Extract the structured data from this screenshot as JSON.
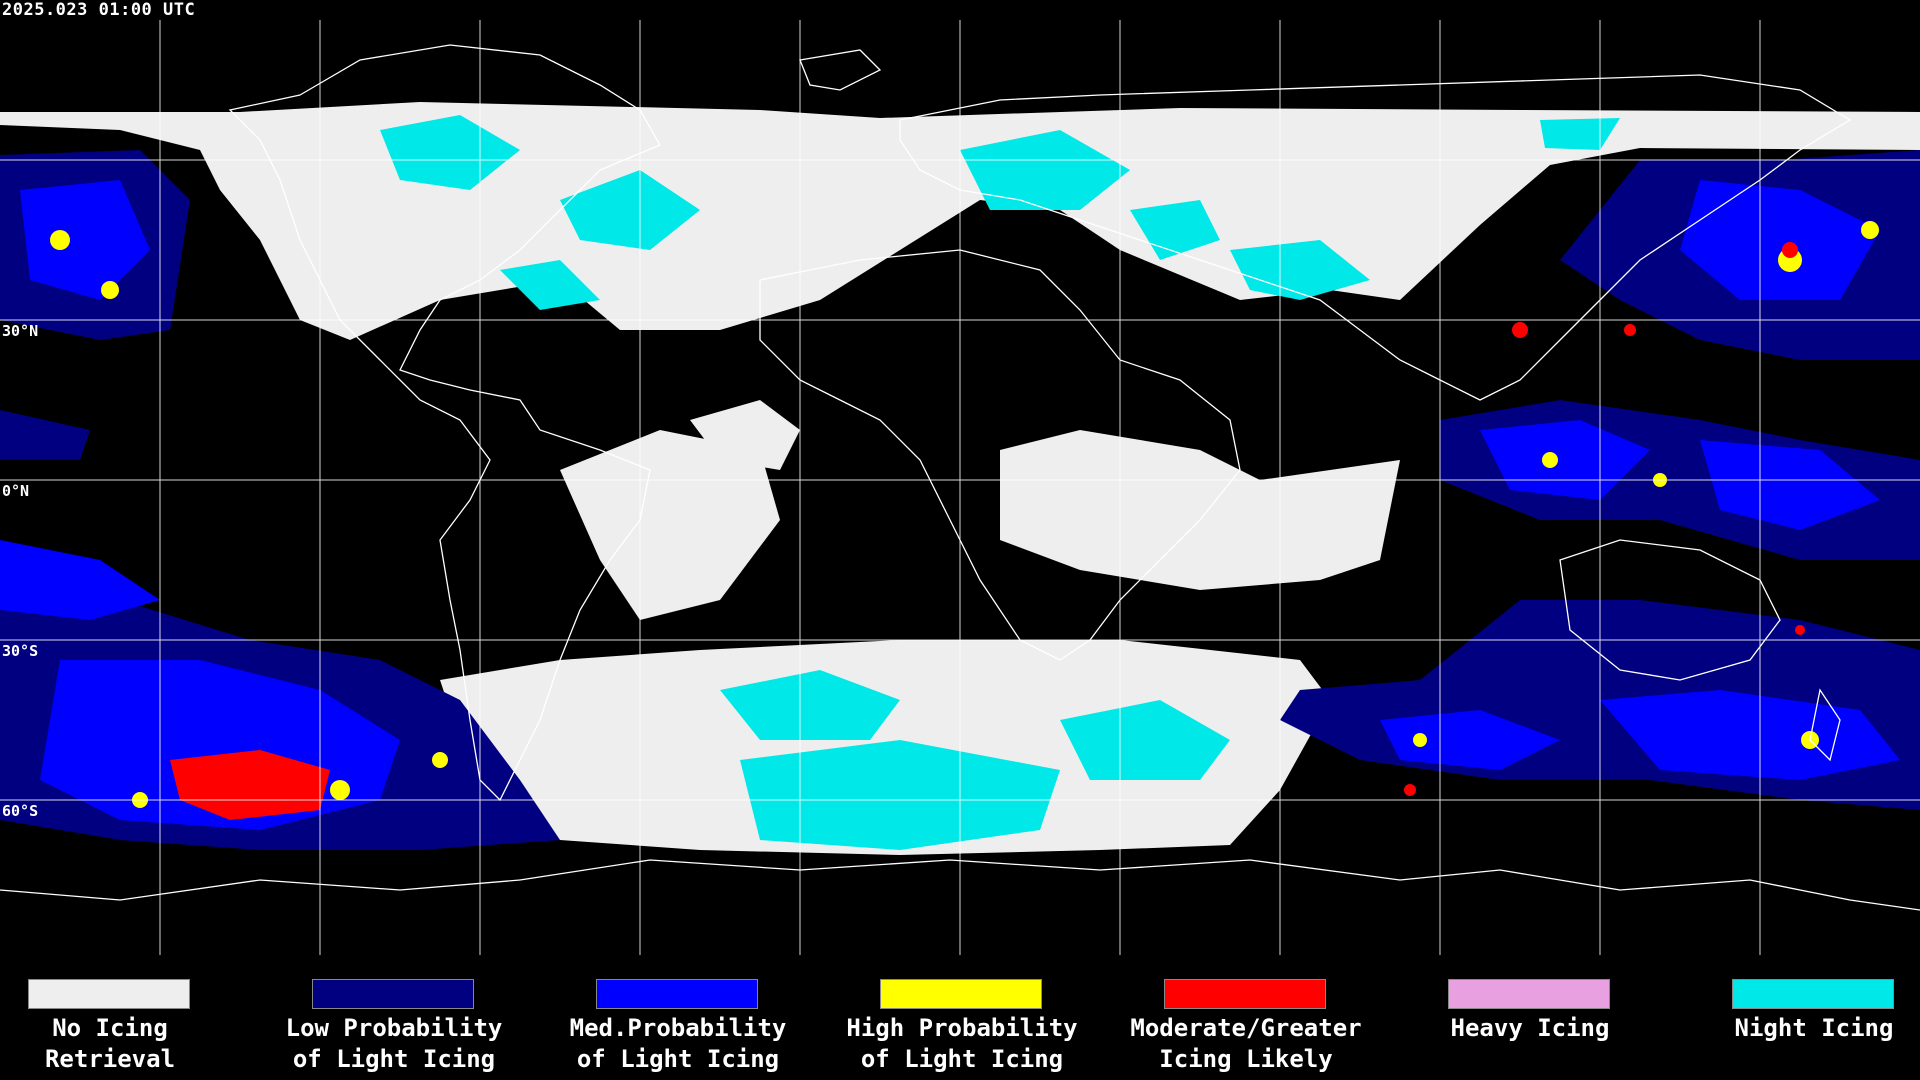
{
  "header": {
    "timestamp": "2025.023 01:00 UTC"
  },
  "map": {
    "background": "#000000",
    "grid_color": "#ffffff",
    "coastline_color": "#ffffff",
    "lat_labels": [
      "30°N",
      "0°N",
      "30°S",
      "60°S"
    ]
  },
  "legend": [
    {
      "line1": "No Icing",
      "line2": "Retrieval",
      "color": "#eeeeee"
    },
    {
      "line1": "Low Probability",
      "line2": "of Light Icing",
      "color": "#000080"
    },
    {
      "line1": "Med.Probability",
      "line2": "of Light Icing",
      "color": "#0000ff"
    },
    {
      "line1": "High Probability",
      "line2": "of Light Icing",
      "color": "#ffff00"
    },
    {
      "line1": "Moderate/Greater",
      "line2": "Icing Likely",
      "color": "#ff0000"
    },
    {
      "line1": "Heavy Icing",
      "line2": "",
      "color": "#e8a0e0"
    },
    {
      "line1": "Night Icing",
      "line2": "",
      "color": "#00e8e8"
    }
  ]
}
